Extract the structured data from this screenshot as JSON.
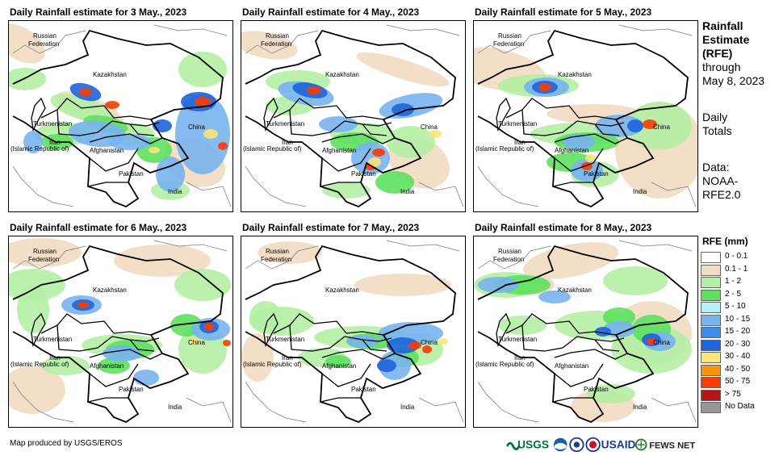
{
  "panels": [
    {
      "title": "Daily Rainfall estimate for 3 May., 2023"
    },
    {
      "title": "Daily Rainfall estimate for 4 May., 2023"
    },
    {
      "title": "Daily Rainfall estimate for 5 May., 2023"
    },
    {
      "title": "Daily Rainfall estimate for 6 May., 2023"
    },
    {
      "title": "Daily Rainfall estimate for 7 May., 2023"
    },
    {
      "title": "Daily Rainfall estimate for 8 May., 2023"
    }
  ],
  "map_labels": {
    "russia_1": "Russian",
    "russia_2": "Federation",
    "kazakhstan": "Kazakhstan",
    "turkmenistan": "Turkmenistan",
    "iran_1": "Iran",
    "iran_2": "(Islamic Republic of)",
    "afghanistan": "Afghanistan",
    "pakistan": "Pakistan",
    "india": "India",
    "china": "China"
  },
  "side_text": {
    "title_1": "Rainfall",
    "title_2": "Estimate",
    "title_3": "(RFE)",
    "through": "through",
    "date": "May 8, 2023",
    "daily": "Daily",
    "totals": "Totals",
    "data_label": "Data:",
    "source_1": "NOAA-",
    "source_2": "RFE2.0"
  },
  "legend": {
    "title": "RFE (mm)",
    "items": [
      {
        "label": "0 - 0.1",
        "color": "#ffffff"
      },
      {
        "label": "0.1 - 1",
        "color": "#f2dcc2"
      },
      {
        "label": "1 - 2",
        "color": "#b4f0a4"
      },
      {
        "label": "2 - 5",
        "color": "#5ee05e"
      },
      {
        "label": "5 - 10",
        "color": "#b4f0fa"
      },
      {
        "label": "10 - 15",
        "color": "#78b4f0"
      },
      {
        "label": "15 - 20",
        "color": "#3c8cf0"
      },
      {
        "label": "20 - 30",
        "color": "#1e64dc"
      },
      {
        "label": "30 - 40",
        "color": "#fae678"
      },
      {
        "label": "40 - 50",
        "color": "#fa9600"
      },
      {
        "label": "50 - 75",
        "color": "#fa3c00"
      },
      {
        "label": "> 75",
        "color": "#b41414"
      },
      {
        "label": "No Data",
        "color": "#969696"
      }
    ]
  },
  "footer": {
    "credit": "Map produced by USGS/EROS",
    "logo_usgs": "USGS",
    "logo_usaid": "USAID",
    "logo_fews": "FEWS NET"
  },
  "rain_patterns": [
    [
      {
        "c": "#f2dcc2",
        "p": [
          [
            14,
            28,
            34,
            20,
            0.55
          ],
          [
            100,
            110,
            45,
            16,
            0.4
          ],
          [
            230,
            175,
            40,
            28,
            0.45
          ]
        ]
      },
      {
        "c": "#b4f0a4",
        "p": [
          [
            20,
            72,
            26,
            14,
            0
          ],
          [
            90,
            108,
            40,
            14,
            0.3
          ],
          [
            150,
            140,
            30,
            14,
            0
          ],
          [
            240,
            60,
            30,
            22,
            0
          ],
          [
            70,
            140,
            38,
            14,
            0
          ],
          [
            200,
            210,
            24,
            12,
            0
          ]
        ]
      },
      {
        "c": "#5ee05e",
        "p": [
          [
            120,
            128,
            28,
            10,
            0.2
          ],
          [
            180,
            160,
            22,
            16,
            0
          ],
          [
            60,
            150,
            20,
            10,
            0
          ]
        ]
      },
      {
        "c": "#78b4f0",
        "p": [
          [
            110,
            140,
            36,
            16,
            0.1
          ],
          [
            240,
            140,
            34,
            50,
            0
          ],
          [
            150,
            150,
            26,
            10,
            0
          ],
          [
            200,
            190,
            18,
            22,
            0
          ],
          [
            30,
            150,
            12,
            14,
            0
          ]
        ]
      },
      {
        "c": "#1e64dc",
        "p": [
          [
            95,
            88,
            20,
            10,
            0.3
          ],
          [
            235,
            100,
            22,
            12,
            0
          ],
          [
            190,
            130,
            12,
            8,
            0
          ]
        ]
      },
      {
        "c": "#fa3c00",
        "p": [
          [
            95,
            88,
            8,
            5,
            0
          ],
          [
            128,
            104,
            9,
            5,
            0
          ],
          [
            240,
            100,
            10,
            6,
            0
          ],
          [
            265,
            155,
            6,
            5,
            0
          ]
        ]
      },
      {
        "c": "#fae678",
        "p": [
          [
            250,
            140,
            9,
            6,
            0
          ],
          [
            180,
            160,
            7,
            4,
            0
          ]
        ]
      }
    ],
    [
      {
        "c": "#f2dcc2",
        "p": [
          [
            30,
            30,
            40,
            16,
            0.2
          ],
          [
            200,
            60,
            60,
            12,
            0.3
          ],
          [
            220,
            175,
            40,
            30,
            0.5
          ]
        ]
      },
      {
        "c": "#b4f0a4",
        "p": [
          [
            70,
            75,
            40,
            14,
            0
          ],
          [
            150,
            140,
            40,
            14,
            0
          ],
          [
            210,
            150,
            30,
            20,
            0
          ],
          [
            130,
            210,
            30,
            10,
            0
          ],
          [
            60,
            105,
            30,
            12,
            0
          ]
        ]
      },
      {
        "c": "#5ee05e",
        "p": [
          [
            140,
            150,
            30,
            12,
            0
          ],
          [
            190,
            200,
            24,
            14,
            0
          ]
        ]
      },
      {
        "c": "#78b4f0",
        "p": [
          [
            80,
            90,
            35,
            14,
            0.2
          ],
          [
            210,
            105,
            40,
            14,
            -0.2
          ],
          [
            120,
            128,
            24,
            10,
            0
          ],
          [
            160,
            170,
            24,
            20,
            0
          ]
        ]
      },
      {
        "c": "#1e64dc",
        "p": [
          [
            85,
            86,
            22,
            9,
            0.2
          ],
          [
            200,
            110,
            14,
            8,
            0
          ]
        ]
      },
      {
        "c": "#fa3c00",
        "p": [
          [
            90,
            86,
            9,
            5,
            0
          ],
          [
            170,
            163,
            8,
            5,
            0
          ],
          [
            160,
            180,
            7,
            5,
            0
          ]
        ]
      },
      {
        "c": "#fae678",
        "p": [
          [
            165,
            175,
            8,
            6,
            0
          ],
          [
            240,
            140,
            8,
            5,
            0
          ]
        ]
      }
    ],
    [
      {
        "c": "#f2dcc2",
        "p": [
          [
            30,
            60,
            60,
            25,
            0.2
          ],
          [
            230,
            160,
            55,
            60,
            0
          ],
          [
            150,
            115,
            60,
            12,
            0
          ]
        ]
      },
      {
        "c": "#b4f0a4",
        "p": [
          [
            80,
            80,
            50,
            14,
            0
          ],
          [
            130,
            140,
            60,
            14,
            0
          ],
          [
            230,
            130,
            40,
            30,
            0
          ],
          [
            150,
            190,
            30,
            16,
            0
          ]
        ]
      },
      {
        "c": "#5ee05e",
        "p": [
          [
            140,
            150,
            40,
            12,
            0
          ],
          [
            120,
            175,
            30,
            12,
            0
          ]
        ]
      },
      {
        "c": "#78b4f0",
        "p": [
          [
            90,
            82,
            28,
            12,
            0
          ],
          [
            180,
            130,
            30,
            14,
            0
          ],
          [
            130,
            150,
            20,
            10,
            0
          ],
          [
            140,
            185,
            20,
            14,
            0
          ]
        ]
      },
      {
        "c": "#1e64dc",
        "p": [
          [
            88,
            82,
            16,
            8,
            0
          ],
          [
            200,
            130,
            10,
            8,
            0
          ]
        ]
      },
      {
        "c": "#fa3c00",
        "p": [
          [
            88,
            82,
            8,
            5,
            0
          ],
          [
            218,
            128,
            9,
            6,
            0
          ],
          [
            140,
            180,
            7,
            5,
            0
          ]
        ]
      },
      {
        "c": "#fae678",
        "p": [
          [
            145,
            170,
            7,
            5,
            0
          ]
        ]
      }
    ],
    [
      {
        "c": "#f2dcc2",
        "p": [
          [
            40,
            20,
            50,
            18,
            0
          ],
          [
            190,
            30,
            60,
            20,
            0
          ],
          [
            30,
            190,
            40,
            30,
            0
          ]
        ]
      },
      {
        "c": "#b4f0a4",
        "p": [
          [
            30,
            60,
            40,
            20,
            0
          ],
          [
            240,
            60,
            35,
            20,
            0
          ],
          [
            140,
            135,
            50,
            14,
            0
          ],
          [
            240,
            140,
            30,
            30,
            0
          ],
          [
            70,
            160,
            30,
            12,
            0
          ],
          [
            30,
            90,
            20,
            30,
            0
          ]
        ]
      },
      {
        "c": "#5ee05e",
        "p": [
          [
            150,
            140,
            30,
            12,
            0
          ],
          [
            220,
            110,
            20,
            14,
            0
          ],
          [
            130,
            160,
            20,
            10,
            0
          ]
        ]
      },
      {
        "c": "#78b4f0",
        "p": [
          [
            90,
            85,
            25,
            12,
            0
          ],
          [
            250,
            115,
            24,
            14,
            0
          ],
          [
            140,
            145,
            24,
            10,
            0
          ],
          [
            170,
            175,
            16,
            10,
            0
          ]
        ]
      },
      {
        "c": "#1e64dc",
        "p": [
          [
            92,
            85,
            14,
            7,
            0
          ],
          [
            248,
            112,
            12,
            8,
            0
          ]
        ]
      },
      {
        "c": "#fa3c00",
        "p": [
          [
            92,
            85,
            7,
            4,
            0
          ],
          [
            248,
            112,
            6,
            5,
            0
          ],
          [
            270,
            132,
            5,
            4,
            0
          ]
        ]
      },
      {
        "c": "#fae678",
        "p": [
          [
            230,
            130,
            7,
            4,
            0
          ]
        ]
      }
    ],
    [
      {
        "c": "#f2dcc2",
        "p": [
          [
            60,
            20,
            40,
            14,
            0
          ],
          [
            200,
            60,
            60,
            14,
            0
          ],
          [
            20,
            150,
            20,
            30,
            0
          ]
        ]
      },
      {
        "c": "#b4f0a4",
        "p": [
          [
            50,
            105,
            40,
            18,
            0
          ],
          [
            150,
            125,
            60,
            14,
            0
          ],
          [
            220,
            140,
            30,
            20,
            0
          ],
          [
            100,
            150,
            30,
            12,
            0
          ],
          [
            30,
            100,
            20,
            20,
            0
          ]
        ]
      },
      {
        "c": "#5ee05e",
        "p": [
          [
            160,
            130,
            30,
            10,
            0
          ],
          [
            200,
            150,
            20,
            12,
            0
          ],
          [
            120,
            155,
            16,
            8,
            0
          ]
        ]
      },
      {
        "c": "#78b4f0",
        "p": [
          [
            210,
            120,
            40,
            14,
            0
          ],
          [
            190,
            160,
            20,
            18,
            0
          ],
          [
            150,
            130,
            20,
            8,
            0
          ]
        ]
      },
      {
        "c": "#1e64dc",
        "p": [
          [
            200,
            135,
            20,
            10,
            0
          ],
          [
            180,
            160,
            12,
            8,
            0
          ]
        ]
      },
      {
        "c": "#fa3c00",
        "p": [
          [
            215,
            135,
            8,
            5,
            0
          ],
          [
            230,
            140,
            6,
            5,
            0
          ]
        ]
      },
      {
        "c": "#fae678",
        "p": [
          [
            250,
            130,
            6,
            4,
            0
          ]
        ]
      }
    ],
    [
      {
        "c": "#f2dcc2",
        "p": [
          [
            120,
            30,
            60,
            20,
            -0.2
          ],
          [
            60,
            60,
            40,
            14,
            0
          ],
          [
            220,
            120,
            50,
            40,
            0
          ],
          [
            160,
            210,
            40,
            20,
            0
          ]
        ]
      },
      {
        "c": "#b4f0a4",
        "p": [
          [
            40,
            60,
            40,
            16,
            0
          ],
          [
            200,
            55,
            40,
            18,
            0
          ],
          [
            150,
            110,
            50,
            18,
            0
          ],
          [
            220,
            140,
            50,
            30,
            0
          ],
          [
            60,
            110,
            30,
            12,
            0
          ],
          [
            170,
            195,
            30,
            12,
            0
          ]
        ]
      },
      {
        "c": "#5ee05e",
        "p": [
          [
            60,
            60,
            35,
            12,
            0
          ],
          [
            180,
            100,
            20,
            12,
            0
          ],
          [
            220,
            115,
            24,
            18,
            0
          ]
        ]
      },
      {
        "c": "#78b4f0",
        "p": [
          [
            30,
            60,
            25,
            10,
            0
          ],
          [
            100,
            75,
            20,
            8,
            0
          ],
          [
            180,
            115,
            20,
            10,
            0
          ],
          [
            230,
            130,
            20,
            12,
            0
          ]
        ]
      },
      {
        "c": "#1e64dc",
        "p": [
          [
            160,
            118,
            10,
            6,
            0
          ],
          [
            220,
            128,
            12,
            8,
            0
          ]
        ]
      },
      {
        "c": "#fa3c00",
        "p": [
          [
            220,
            130,
            6,
            4,
            0
          ]
        ]
      }
    ]
  ]
}
